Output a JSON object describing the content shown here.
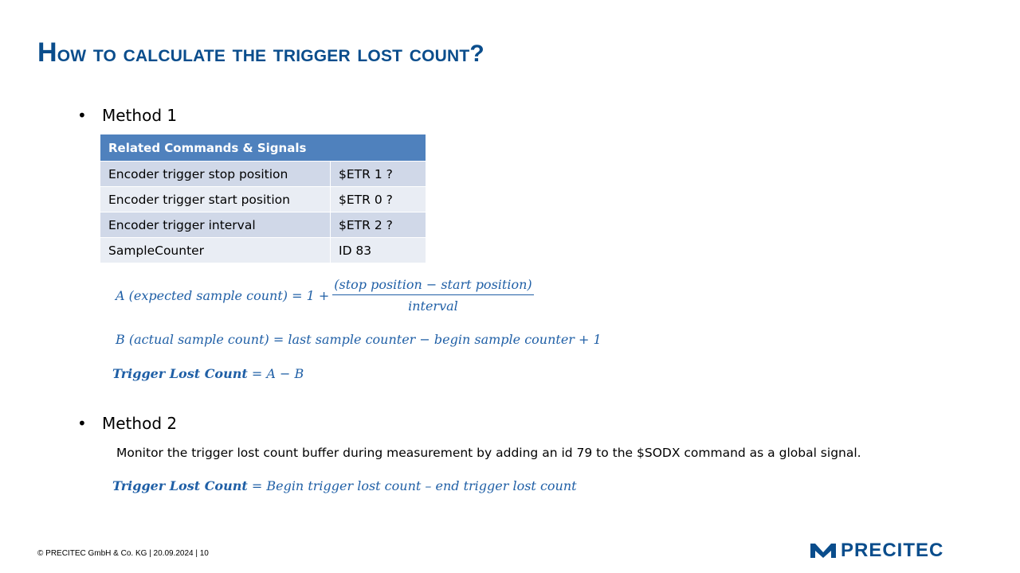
{
  "slide": {
    "title_first": "H",
    "title_rest": "ow to calculate the trigger lost count?"
  },
  "method1": {
    "bullet": "•",
    "label": "Method  1",
    "table": {
      "header": "Related Commands & Signals",
      "rows": [
        {
          "name": "Encoder trigger stop position",
          "value": "$ETR 1 ?"
        },
        {
          "name": "Encoder trigger start position",
          "value": "$ETR 0 ?"
        },
        {
          "name": "Encoder trigger interval",
          "value": "$ETR 2 ?"
        },
        {
          "name": "SampleCounter",
          "value": "ID 83"
        }
      ]
    },
    "formula_a": {
      "lhs": "A (expected sample count) = 1 +",
      "numerator": "(stop position − start position)",
      "denominator": "interval"
    },
    "formula_b": "B (actual sample count) = last sample counter − begin sample counter + 1",
    "formula_trigger": {
      "bold": "Trigger Lost Count",
      "rest": " = A − B"
    }
  },
  "method2": {
    "bullet": "•",
    "label": "Method  2",
    "description": "Monitor the trigger lost count buffer during measurement by adding an id 79 to the $SODX command as a global signal.",
    "formula_trigger": {
      "bold": "Trigger Lost Count",
      "rest": "  = Begin trigger lost count – end trigger lost count"
    }
  },
  "footer": {
    "text": "© PRECITEC GmbH & Co. KG | 20.09.2024 | 10"
  },
  "logo": {
    "text": "PRECITEC",
    "icon": "precitec-m-mark-icon",
    "color": "#0a4d8c"
  },
  "colors": {
    "title": "#0a4d8c",
    "math": "#1f5fa6",
    "table_header": "#4f81bd",
    "table_row_odd": "#d0d8e8",
    "table_row_even": "#e9edf4"
  }
}
